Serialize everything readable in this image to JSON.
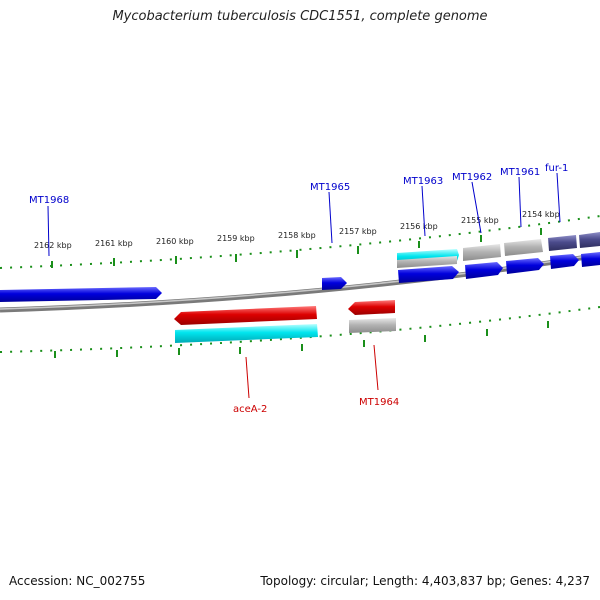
{
  "title": "Mycobacterium tuberculosis CDC1551, complete genome",
  "footer": {
    "accession": "Accession: NC_002755",
    "topology": "Topology: circular; Length: 4,403,837 bp; Genes: 4,237"
  },
  "scale": {
    "unit": "kbp",
    "ticks": [
      "2162 kbp",
      "2161 kbp",
      "2160 kbp",
      "2159 kbp",
      "2158 kbp",
      "2157 kbp",
      "2156 kbp",
      "2155 kbp",
      "2154 kbp"
    ]
  },
  "genes": {
    "top": [
      "MT1968",
      "MT1965",
      "MT1963",
      "MT1962",
      "MT1961",
      "fur-1"
    ],
    "bottom": [
      "aceA-2",
      "MT1964"
    ]
  },
  "colors": {
    "forward_gene": "#0000dd",
    "reverse_gene": "#dd0000",
    "cds": "#00e5ee",
    "pseudo": "#b4b4b4",
    "regulator": "#4b4b8c",
    "label_top": "#0000cc",
    "label_bottom": "#cc0000",
    "tick": "#1a8f1a",
    "backbone": "#8a8a8a"
  }
}
